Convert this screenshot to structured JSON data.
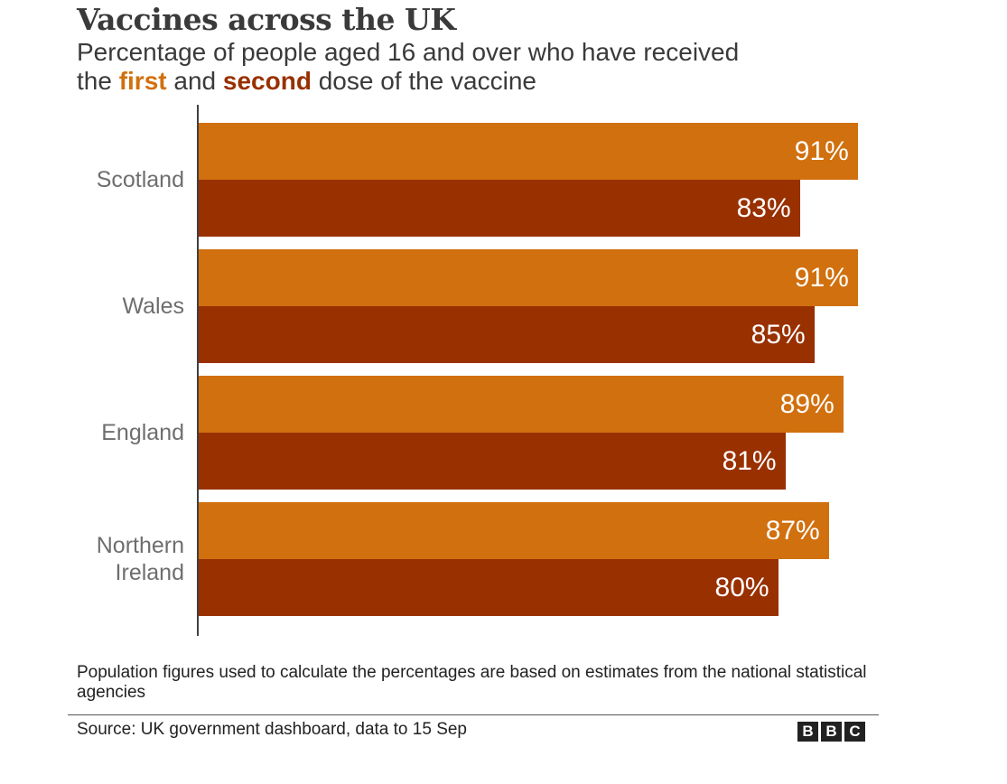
{
  "title": "Vaccines across the UK",
  "subtitle": {
    "line1": "Percentage of people aged 16 and over who have received",
    "pre": "the ",
    "first": "first",
    "mid": " and ",
    "second": "second",
    "post": " dose of the vaccine"
  },
  "note": "Population figures used to calculate the percentages are based on estimates from the national statistical agencies",
  "source": "Source: UK government dashboard, data to 15 Sep",
  "logo": [
    "B",
    "B",
    "C"
  ],
  "chart_data": {
    "type": "bar",
    "orientation": "horizontal",
    "title": "Vaccines across the UK",
    "categories": [
      "Scotland",
      "Wales",
      "England",
      "Northern Ireland"
    ],
    "series": [
      {
        "name": "first",
        "color": "#D1700E",
        "values": [
          91,
          91,
          89,
          87
        ],
        "labels": [
          "91%",
          "91%",
          "89%",
          "87%"
        ]
      },
      {
        "name": "second",
        "color": "#993000",
        "values": [
          83,
          85,
          81,
          80
        ],
        "labels": [
          "83%",
          "85%",
          "81%",
          "80%"
        ]
      }
    ],
    "xlim": [
      0,
      100
    ],
    "grid": false,
    "legend": "in subtitle"
  }
}
